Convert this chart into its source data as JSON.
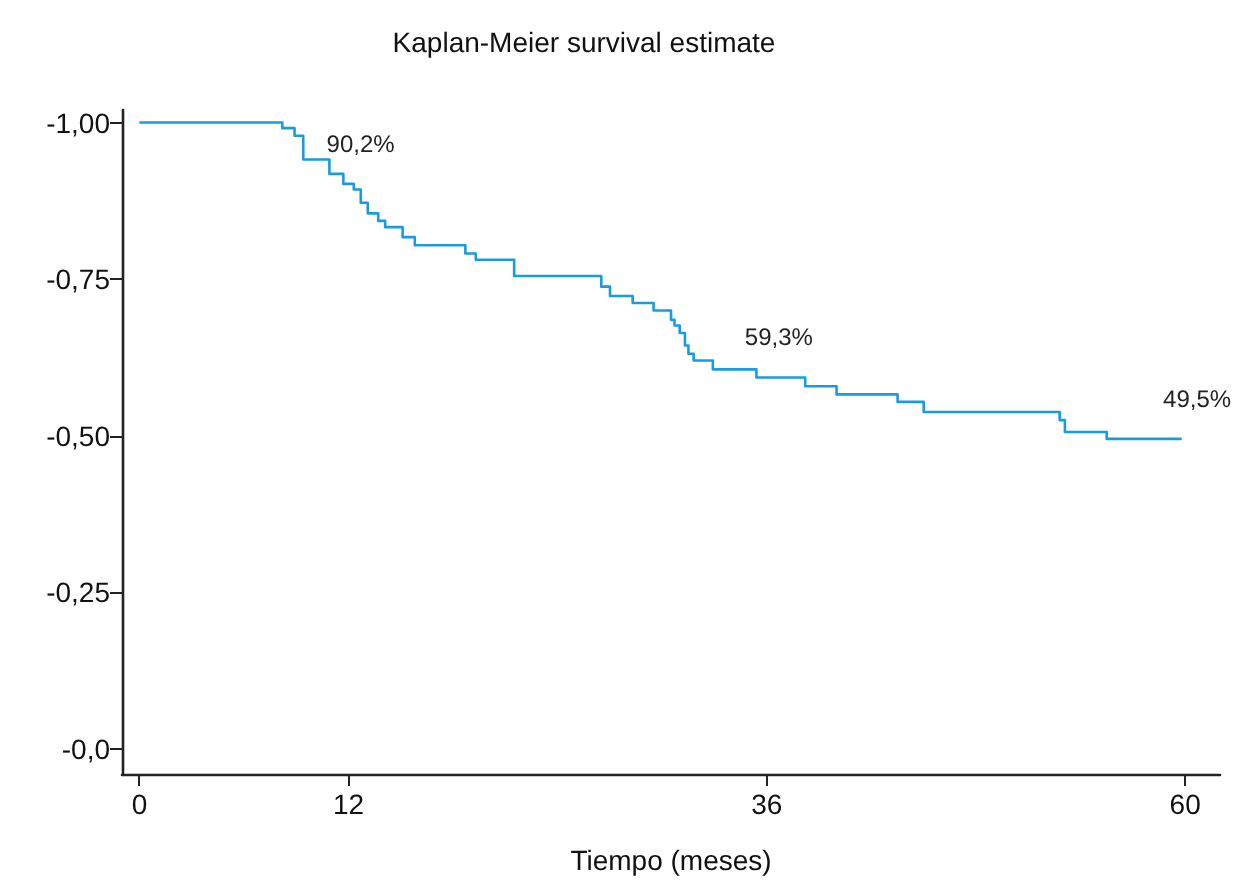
{
  "chart_data": {
    "type": "step",
    "title": "Kaplan-Meier survival estimate",
    "xlabel": "Tiempo (meses)",
    "xlim": [
      -1,
      62
    ],
    "xticks": [
      0,
      12,
      36,
      60
    ],
    "ylim": [
      0.04,
      -1.02
    ],
    "yticks": [
      {
        "value": 0,
        "label": "-0,0"
      },
      {
        "value": -0.25,
        "label": "-0,25"
      },
      {
        "value": -0.5,
        "label": "-0,50"
      },
      {
        "value": -0.75,
        "label": "-0,75"
      },
      {
        "value": -1,
        "label": "-1,00"
      }
    ],
    "series": [
      {
        "color": "#1a9be0",
        "x": [
          0,
          8.2,
          8.9,
          9.4,
          10.9,
          11.7,
          12.3,
          12.7,
          13.1,
          13.7,
          14.1,
          15.1,
          15.8,
          18.7,
          19.3,
          21.5,
          26.5,
          27.0,
          28.3,
          29.5,
          30.5,
          30.7,
          31.0,
          31.3,
          31.5,
          31.8,
          32.9,
          35.4,
          38.2,
          40.0,
          43.5,
          45.0,
          52.8,
          53.1,
          55.5,
          59.8
        ],
        "values": [
          -1,
          -0.991,
          -0.979,
          -0.941,
          -0.918,
          -0.902,
          -0.893,
          -0.872,
          -0.855,
          -0.843,
          -0.833,
          -0.817,
          -0.804,
          -0.791,
          -0.781,
          -0.755,
          -0.738,
          -0.723,
          -0.712,
          -0.7,
          -0.685,
          -0.676,
          -0.664,
          -0.644,
          -0.631,
          -0.62,
          -0.606,
          -0.593,
          -0.579,
          -0.566,
          -0.554,
          -0.538,
          -0.525,
          -0.506,
          -0.495,
          -0.495
        ]
      }
    ],
    "annotations": [
      {
        "text": "90,2%",
        "x": 12,
        "y": -0.902
      },
      {
        "text": "59,3%",
        "x": 36,
        "y": -0.593
      },
      {
        "text": "49,5%",
        "x": 60,
        "y": -0.495
      }
    ],
    "grid": false,
    "marker": "none",
    "line_style": "solid"
  }
}
